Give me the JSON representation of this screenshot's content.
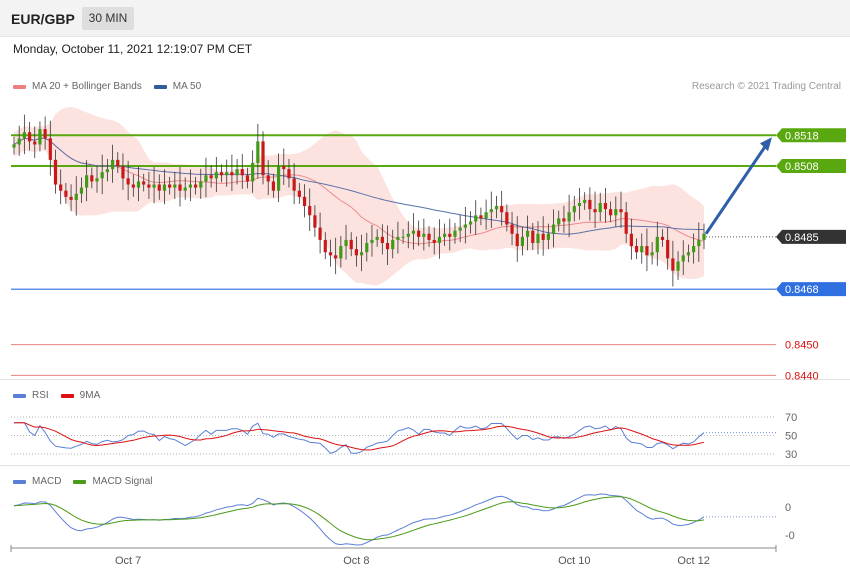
{
  "header": {
    "symbol": "EUR/GBP",
    "timeframe": "30 MIN"
  },
  "datetime": "Monday, October 11, 2021 12:19:07 PM CET",
  "legend_main": [
    {
      "label": "MA 20 + Bollinger Bands",
      "color": "#f08080"
    },
    {
      "label": "MA 50",
      "color": "#2e5e9e"
    }
  ],
  "credit": "Research © 2021 Trading Central",
  "legend_rsi": [
    {
      "label": "RSI",
      "color": "#5b7fd6"
    },
    {
      "label": "9MA",
      "color": "#dd1111"
    }
  ],
  "legend_macd": [
    {
      "label": "MACD",
      "color": "#5b7fd6"
    },
    {
      "label": "MACD Signal",
      "color": "#4c9a1a"
    }
  ],
  "chart_data": {
    "type": "candlestick",
    "price_axis": {
      "min": 0.8432,
      "max": 0.8534
    },
    "levels": [
      {
        "value": 0.8518,
        "label": "0.8518",
        "kind": "resistance",
        "color": "#5aa80f"
      },
      {
        "value": 0.8508,
        "label": "0.8508",
        "kind": "resistance",
        "color": "#5aa80f"
      },
      {
        "value": 0.8485,
        "label": "0.8485",
        "kind": "current",
        "color": "#333333"
      },
      {
        "value": 0.8468,
        "label": "0.8468",
        "kind": "pivot",
        "color": "#2f6fe0"
      },
      {
        "value": 0.845,
        "label": "0.8450",
        "kind": "support",
        "color": "#dd1111"
      },
      {
        "value": 0.844,
        "label": "0.8440",
        "kind": "support",
        "color": "#dd1111"
      }
    ],
    "x_ticks": [
      {
        "label": "Oct 7",
        "index": 22
      },
      {
        "label": "Oct 8",
        "index": 66
      },
      {
        "label": "Oct 10",
        "index": 108
      },
      {
        "label": "Oct 12",
        "index": 131
      }
    ],
    "closes": [
      0.8515,
      0.8517,
      0.8519,
      0.8516,
      0.8515,
      0.852,
      0.8517,
      0.851,
      0.8502,
      0.85,
      0.8498,
      0.8497,
      0.8499,
      0.8501,
      0.8505,
      0.8503,
      0.8504,
      0.8506,
      0.8507,
      0.851,
      0.8508,
      0.8504,
      0.8502,
      0.8501,
      0.8503,
      0.8502,
      0.8501,
      0.8502,
      0.85,
      0.8502,
      0.8501,
      0.8502,
      0.85,
      0.8501,
      0.8502,
      0.8501,
      0.8503,
      0.8505,
      0.8504,
      0.8506,
      0.8505,
      0.8506,
      0.8505,
      0.8507,
      0.8505,
      0.8503,
      0.8509,
      0.8516,
      0.8505,
      0.8503,
      0.85,
      0.8508,
      0.8507,
      0.8504,
      0.85,
      0.8498,
      0.8495,
      0.8492,
      0.8488,
      0.8484,
      0.848,
      0.8479,
      0.8478,
      0.8482,
      0.8484,
      0.8481,
      0.8479,
      0.848,
      0.8483,
      0.8484,
      0.8485,
      0.8483,
      0.8481,
      0.8484,
      0.8485,
      0.8485,
      0.8486,
      0.8487,
      0.8485,
      0.8486,
      0.8484,
      0.8483,
      0.8485,
      0.8486,
      0.8485,
      0.8487,
      0.8488,
      0.8489,
      0.849,
      0.8492,
      0.8491,
      0.8493,
      0.8494,
      0.8495,
      0.8493,
      0.8489,
      0.8486,
      0.8482,
      0.8485,
      0.8487,
      0.8483,
      0.8486,
      0.8484,
      0.8486,
      0.8489,
      0.8491,
      0.849,
      0.8493,
      0.8495,
      0.8496,
      0.8497,
      0.8494,
      0.8493,
      0.8496,
      0.8494,
      0.8492,
      0.8494,
      0.8493,
      0.8486,
      0.8482,
      0.848,
      0.8482,
      0.8479,
      0.848,
      0.8485,
      0.8484,
      0.8478,
      0.8474,
      0.8477,
      0.8479,
      0.848,
      0.8482,
      0.8484,
      0.8486
    ],
    "rsi": {
      "levels": [
        70,
        50,
        30
      ]
    },
    "macd": {
      "levels": [
        "0",
        "-0"
      ]
    }
  }
}
